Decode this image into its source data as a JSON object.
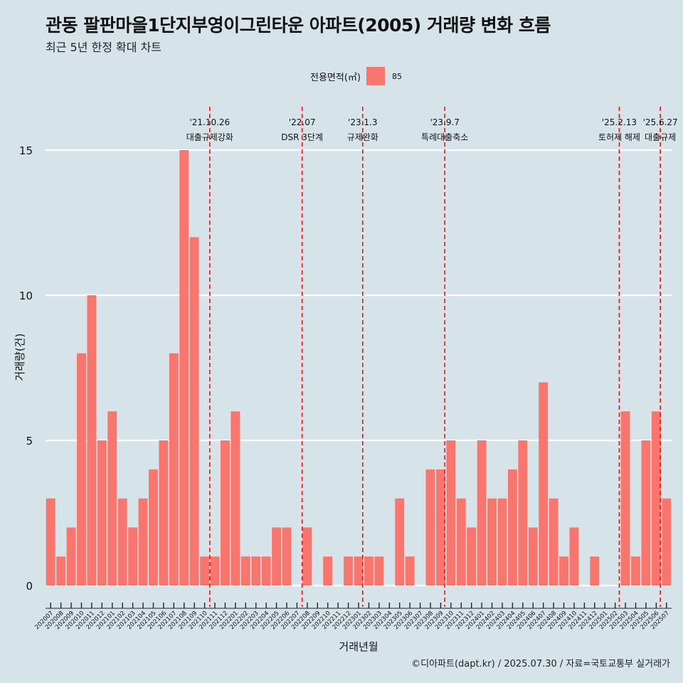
{
  "title": "관동 팔판마을1단지부영이그린타운 아파트(2005) 거래량 변화 흐름",
  "subtitle": "최근 5년 한정 확대 차트",
  "legend": {
    "title": "전용면적(㎡)",
    "label": "85",
    "color": "#f8766d"
  },
  "footer": "©디아파트(dapt.kr) / 2025.07.30 / 자료=국토교통부 실거래가",
  "chart_data": {
    "type": "bar",
    "xlabel": "거래년월",
    "ylabel": "거래량(건)",
    "ylim": [
      0,
      15
    ],
    "yticks": [
      0,
      5,
      10,
      15
    ],
    "grid": true,
    "legend_position": "top",
    "categories": [
      "202007",
      "202008",
      "202009",
      "202010",
      "202011",
      "202012",
      "202101",
      "202102",
      "202103",
      "202104",
      "202105",
      "202106",
      "202107",
      "202108",
      "202109",
      "202110",
      "202111",
      "202112",
      "202201",
      "202202",
      "202203",
      "202204",
      "202205",
      "202206",
      "202207",
      "202208",
      "202209",
      "202210",
      "202211",
      "202212",
      "202301",
      "202302",
      "202303",
      "202304",
      "202305",
      "202306",
      "202307",
      "202308",
      "202309",
      "202310",
      "202311",
      "202312",
      "202401",
      "202402",
      "202403",
      "202404",
      "202405",
      "202406",
      "202407",
      "202408",
      "202409",
      "202410",
      "202411",
      "202412",
      "202501",
      "202502",
      "202503",
      "202504",
      "202505",
      "202506",
      "202507"
    ],
    "series": [
      {
        "name": "85",
        "color": "#f8766d",
        "values": [
          3,
          1,
          2,
          8,
          10,
          5,
          6,
          3,
          2,
          3,
          4,
          5,
          8,
          15,
          12,
          1,
          1,
          5,
          6,
          1,
          1,
          1,
          2,
          2,
          0,
          2,
          0,
          1,
          0,
          1,
          1,
          1,
          1,
          0,
          3,
          1,
          0,
          4,
          4,
          5,
          3,
          2,
          5,
          3,
          3,
          4,
          5,
          2,
          7,
          3,
          1,
          2,
          0,
          1,
          0,
          0,
          6,
          1,
          5,
          6,
          3
        ]
      }
    ],
    "annotations": [
      {
        "date_label": "'21.10.26",
        "text": "대출규제강화",
        "position": 15.5
      },
      {
        "date_label": "'22.07",
        "text": "DSR 3단계",
        "position": 24.5
      },
      {
        "date_label": "'23.1.3",
        "text": "규제완화",
        "position": 30.4
      },
      {
        "date_label": "'23.9.7",
        "text": "특례대출축소",
        "position": 38.4
      },
      {
        "date_label": "'25.2.13",
        "text": "토허제 해제",
        "position": 55.4
      },
      {
        "date_label": "'25.6.27",
        "text": "대출규제",
        "position": 59.4
      }
    ]
  }
}
